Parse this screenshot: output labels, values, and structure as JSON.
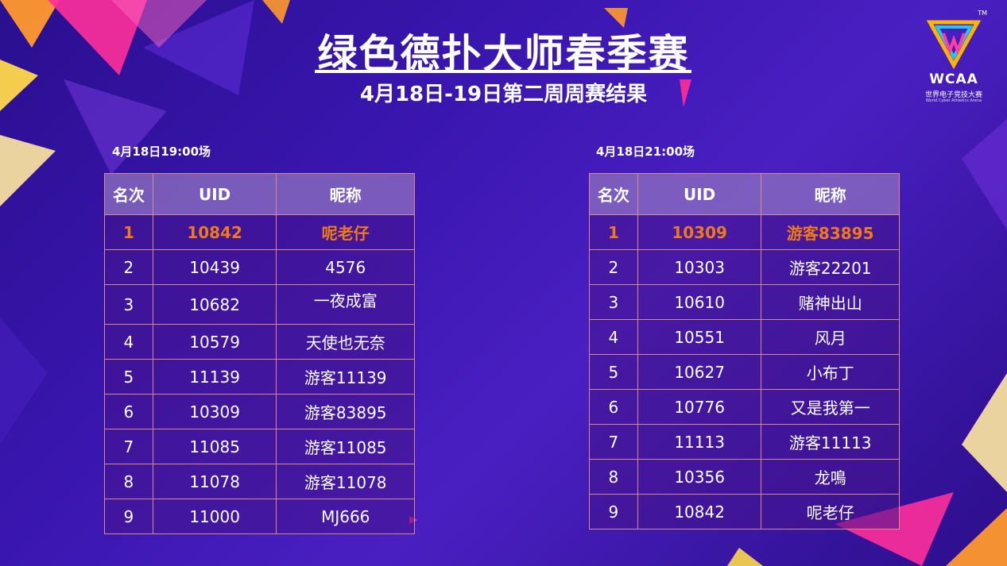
{
  "header": {
    "title": "绿色德扑大师春季赛",
    "subtitle": "4月18日-19日第二周周赛结果"
  },
  "logo": {
    "tm": "TM",
    "brand": "WCAA",
    "cn": "世界电子竞技大赛",
    "en": "World Cyber Athletics Arena"
  },
  "colors": {
    "background": "#3a16b0",
    "accent_first_place": "#f07a18",
    "table_border": "#d78a8a"
  },
  "tables": [
    {
      "session": "4月18日19:00场",
      "columns": [
        "名次",
        "UID",
        "昵称"
      ],
      "rows": [
        [
          "1",
          "10842",
          "呢老仔"
        ],
        [
          "2",
          "10439",
          "4576"
        ],
        [
          "3",
          "10682",
          "一夜成富"
        ],
        [
          "4",
          "10579",
          "天使也无奈"
        ],
        [
          "5",
          "11139",
          "游客11139"
        ],
        [
          "6",
          "10309",
          "游客83895"
        ],
        [
          "7",
          "11085",
          "游客11085"
        ],
        [
          "8",
          "11078",
          "游客11078"
        ],
        [
          "9",
          "11000",
          "MJ666"
        ]
      ]
    },
    {
      "session": "4月18日21:00场",
      "columns": [
        "名次",
        "UID",
        "昵称"
      ],
      "rows": [
        [
          "1",
          "10309",
          "游客83895"
        ],
        [
          "2",
          "10303",
          "游客22201"
        ],
        [
          "3",
          "10610",
          "赌神出山"
        ],
        [
          "4",
          "10551",
          "风月"
        ],
        [
          "5",
          "10627",
          "小布丁"
        ],
        [
          "6",
          "10776",
          "又是我第一"
        ],
        [
          "7",
          "11113",
          "游客11113"
        ],
        [
          "8",
          "10356",
          "龙鳴"
        ],
        [
          "9",
          "10842",
          "呢老仔"
        ]
      ]
    }
  ]
}
